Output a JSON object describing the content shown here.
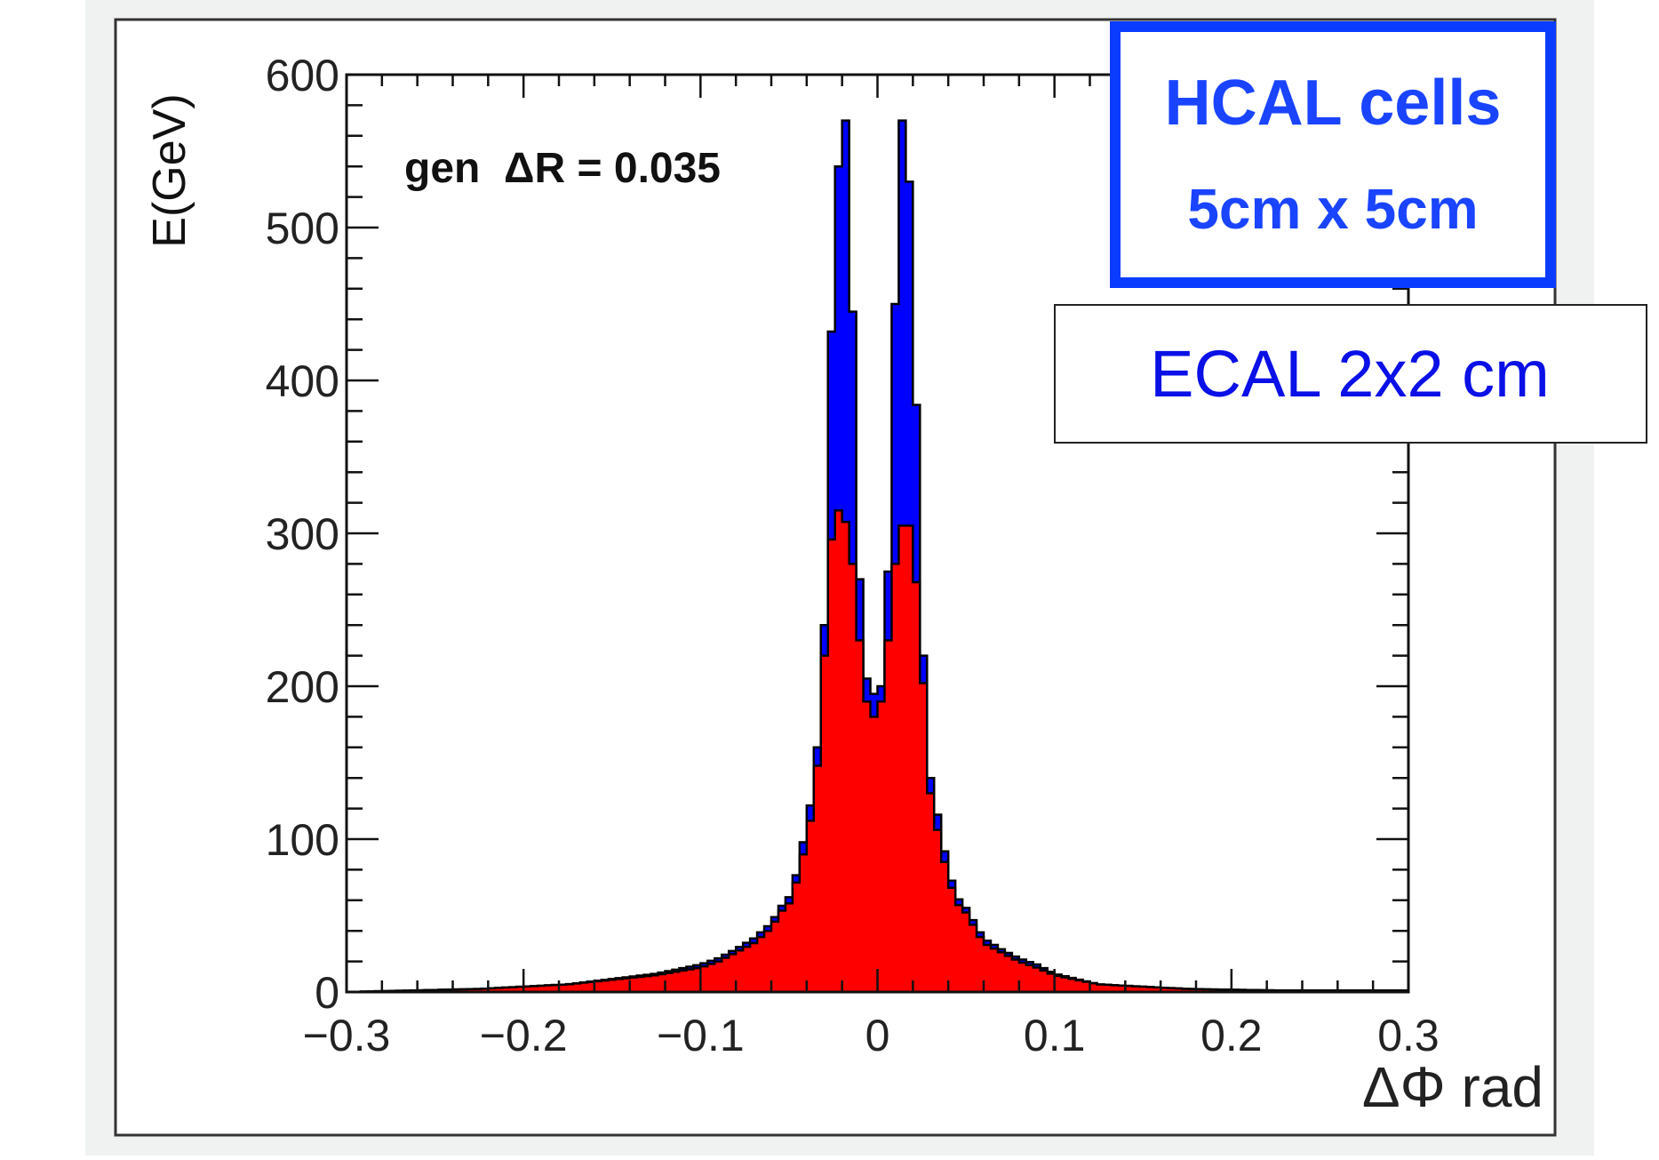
{
  "colors": {
    "page_background": "#ffffff",
    "canvas_background": "#f0f2f2",
    "frame_background": "#ffffff",
    "hcal_fill": "#0000ff",
    "ecal_fill": "#ff0000",
    "histogram_outline": "#000000",
    "label_text": "#0000ff",
    "hcal_box_border": "#0a3cff"
  },
  "chart_data": {
    "type": "histogram",
    "title": "",
    "xlabel": "ΔΦ rad",
    "ylabel": "E(GeV)",
    "xlim": [
      -0.3,
      0.3
    ],
    "ylim": [
      0,
      600
    ],
    "grid": false,
    "legend": "none",
    "x_ticks": [
      "−0.3",
      "−0.2",
      "−0.1",
      "0",
      "0.1",
      "0.2",
      "0.3"
    ],
    "y_ticks": [
      "0",
      "100",
      "200",
      "300",
      "400",
      "500",
      "600"
    ],
    "annotations": {
      "gen_label": "gen  ΔR = 0.035",
      "hcal_line1": "HCAL cells",
      "hcal_line2": "5cm x 5cm",
      "ecal_label": "ECAL 2x2 cm"
    },
    "series": [
      {
        "name": "HCAL cells 5cm x 5cm",
        "color": "#0000ff",
        "x": [
          -0.225,
          -0.175,
          -0.125,
          -0.1,
          -0.09,
          -0.08,
          -0.07,
          -0.06,
          -0.055,
          -0.05,
          -0.045,
          -0.04,
          -0.035,
          -0.03,
          -0.025,
          -0.02,
          -0.016,
          -0.012,
          -0.008,
          -0.004,
          0.0,
          0.004,
          0.008,
          0.012,
          0.016,
          0.02,
          0.025,
          0.03,
          0.035,
          0.04,
          0.045,
          0.05,
          0.055,
          0.06,
          0.07,
          0.08,
          0.09,
          0.1,
          0.125,
          0.175,
          0.225
        ],
        "values": [
          2,
          5,
          12,
          18,
          22,
          28,
          35,
          45,
          55,
          62,
          80,
          110,
          140,
          240,
          480,
          580,
          560,
          330,
          210,
          200,
          190,
          210,
          340,
          560,
          580,
          480,
          240,
          140,
          110,
          80,
          62,
          55,
          45,
          35,
          28,
          22,
          18,
          12,
          5,
          2,
          1
        ]
      },
      {
        "name": "ECAL 2x2 cm",
        "color": "#ff0000",
        "x": [
          -0.225,
          -0.175,
          -0.125,
          -0.1,
          -0.09,
          -0.08,
          -0.07,
          -0.06,
          -0.055,
          -0.05,
          -0.045,
          -0.04,
          -0.035,
          -0.03,
          -0.025,
          -0.02,
          -0.016,
          -0.012,
          -0.008,
          -0.004,
          0.0,
          0.004,
          0.008,
          0.012,
          0.016,
          0.02,
          0.025,
          0.03,
          0.035,
          0.04,
          0.045,
          0.05,
          0.055,
          0.06,
          0.07,
          0.08,
          0.09,
          0.1,
          0.125,
          0.175,
          0.225
        ],
        "values": [
          2,
          5,
          11,
          16,
          20,
          26,
          32,
          42,
          52,
          58,
          75,
          100,
          130,
          220,
          315,
          315,
          300,
          260,
          200,
          180,
          180,
          200,
          260,
          300,
          310,
          300,
          220,
          130,
          100,
          75,
          58,
          52,
          42,
          32,
          26,
          20,
          16,
          11,
          5,
          2,
          1
        ]
      }
    ]
  }
}
